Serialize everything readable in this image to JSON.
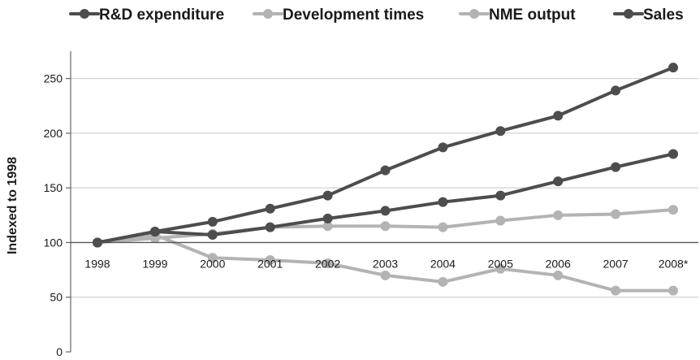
{
  "chart_data": {
    "type": "line",
    "title": "",
    "xlabel": "",
    "ylabel": "Indexed to 1998",
    "categories": [
      "1998",
      "1999",
      "2000",
      "2001",
      "2002",
      "2003",
      "2004",
      "2005",
      "2006",
      "2007",
      "2008*"
    ],
    "ylim": [
      0,
      275
    ],
    "yticks": [
      0,
      50,
      100,
      150,
      200,
      250
    ],
    "grid": true,
    "legend_position": "top",
    "series": [
      {
        "name": "R&D expenditure",
        "color": "#4d4d4d",
        "values": [
          100,
          110,
          119,
          131,
          143,
          166,
          187,
          202,
          216,
          239,
          260
        ]
      },
      {
        "name": "Development times",
        "color": "#b3b3b3",
        "values": [
          100,
          104,
          108,
          114,
          115,
          115,
          114,
          120,
          125,
          126,
          130
        ]
      },
      {
        "name": "NME output",
        "color": "#b3b3b3",
        "values": [
          100,
          107,
          86,
          84,
          81,
          70,
          64,
          76,
          70,
          56,
          56
        ]
      },
      {
        "name": "Sales",
        "color": "#4d4d4d",
        "values": [
          100,
          110,
          107,
          114,
          122,
          129,
          137,
          143,
          156,
          169,
          181
        ]
      }
    ]
  }
}
